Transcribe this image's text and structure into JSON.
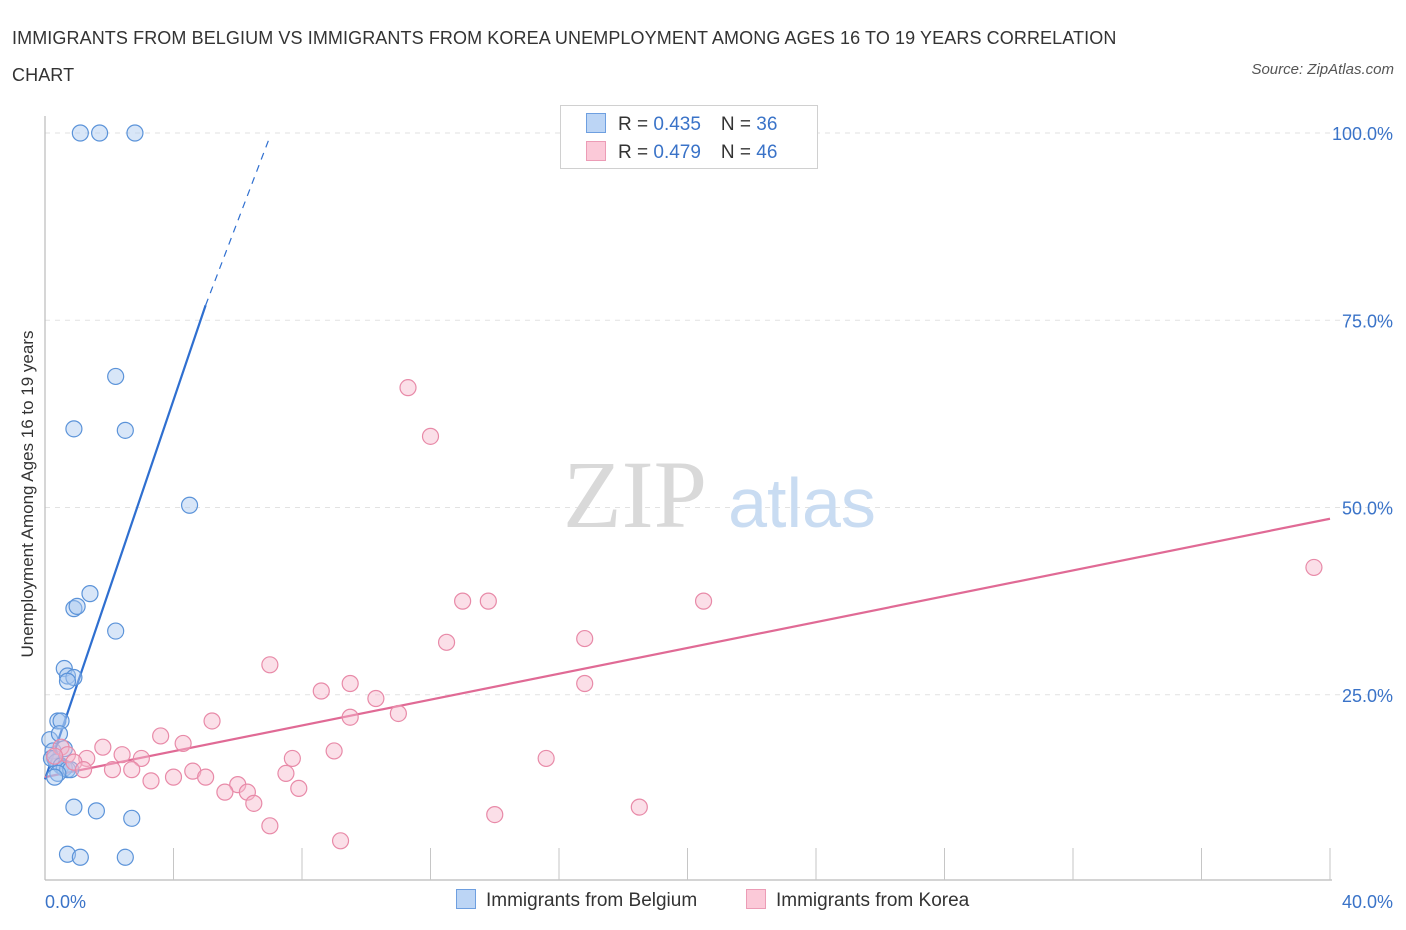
{
  "header": {
    "title": "IMMIGRANTS FROM BELGIUM VS IMMIGRANTS FROM KOREA UNEMPLOYMENT AMONG AGES 16 TO 19 YEARS CORRELATION CHART",
    "source": "Source: ZipAtlas.com"
  },
  "legend": {
    "belgium": {
      "r_label": "R = ",
      "r_value": "0.435",
      "n_label": "N = ",
      "n_value": "36"
    },
    "korea": {
      "r_label": "R = ",
      "r_value": "0.479",
      "n_label": "N = ",
      "n_value": "46"
    }
  },
  "bottom_legend": {
    "belgium": "Immigrants from Belgium",
    "korea": "Immigrants from Korea"
  },
  "watermark": {
    "part1": "ZIP",
    "part2": "atlas"
  },
  "colors": {
    "belgium_fill": "#a8c8f0",
    "belgium_stroke": "#5b93d9",
    "belgium_line": "#2f6fd0",
    "korea_fill": "#f6b8cb",
    "korea_stroke": "#e88aa8",
    "korea_line": "#e06a95",
    "tick_text": "#3a73c8"
  },
  "chart_data": {
    "type": "scatter",
    "title": "IMMIGRANTS FROM BELGIUM VS IMMIGRANTS FROM KOREA UNEMPLOYMENT AMONG AGES 16 TO 19 YEARS CORRELATION CHART",
    "xlabel": "",
    "ylabel": "Unemployment Among Ages 16 to 19 years",
    "xlim": [
      0,
      40
    ],
    "ylim": [
      0,
      100
    ],
    "x_tick_labels": [
      "0.0%",
      "40.0%"
    ],
    "y_ticks": [
      25,
      50,
      75,
      100
    ],
    "y_tick_labels": [
      "25.0%",
      "50.0%",
      "75.0%",
      "100.0%"
    ],
    "series": [
      {
        "name": "Immigrants from Belgium",
        "points": [
          [
            1.1,
            100
          ],
          [
            1.7,
            100
          ],
          [
            2.8,
            100
          ],
          [
            2.2,
            67.5
          ],
          [
            0.9,
            60.5
          ],
          [
            2.5,
            60.3
          ],
          [
            4.5,
            50.3
          ],
          [
            1.4,
            38.5
          ],
          [
            0.9,
            36.5
          ],
          [
            1.0,
            36.8
          ],
          [
            2.2,
            33.5
          ],
          [
            0.6,
            28.5
          ],
          [
            0.7,
            27.5
          ],
          [
            0.9,
            27.3
          ],
          [
            0.7,
            26.8
          ],
          [
            0.4,
            21.5
          ],
          [
            0.5,
            21.5
          ],
          [
            0.15,
            19.0
          ],
          [
            0.45,
            19.8
          ],
          [
            0.25,
            17.5
          ],
          [
            0.3,
            16.5
          ],
          [
            0.35,
            16.0
          ],
          [
            0.2,
            16.5
          ],
          [
            0.5,
            15.5
          ],
          [
            0.6,
            15.2
          ],
          [
            0.7,
            15.0
          ],
          [
            0.8,
            15.0
          ],
          [
            0.4,
            14.5
          ],
          [
            0.3,
            14.0
          ],
          [
            0.9,
            10.0
          ],
          [
            1.6,
            9.5
          ],
          [
            2.7,
            8.5
          ],
          [
            0.7,
            3.7
          ],
          [
            1.1,
            3.3
          ],
          [
            2.5,
            3.3
          ],
          [
            0.6,
            17.8
          ]
        ]
      },
      {
        "name": "Immigrants from Korea",
        "points": [
          [
            11.3,
            66.0
          ],
          [
            12.0,
            59.5
          ],
          [
            13.0,
            37.5
          ],
          [
            13.8,
            37.5
          ],
          [
            20.5,
            37.5
          ],
          [
            39.5,
            42.0
          ],
          [
            12.5,
            32.0
          ],
          [
            16.8,
            32.5
          ],
          [
            7.0,
            29.0
          ],
          [
            8.6,
            25.5
          ],
          [
            9.5,
            26.5
          ],
          [
            10.3,
            24.5
          ],
          [
            16.8,
            26.5
          ],
          [
            11.0,
            22.5
          ],
          [
            5.2,
            21.5
          ],
          [
            9.5,
            22.0
          ],
          [
            3.6,
            19.5
          ],
          [
            4.3,
            18.5
          ],
          [
            9.0,
            17.5
          ],
          [
            0.5,
            18.0
          ],
          [
            0.7,
            17.0
          ],
          [
            1.3,
            16.5
          ],
          [
            1.8,
            18.0
          ],
          [
            2.4,
            17.0
          ],
          [
            3.0,
            16.5
          ],
          [
            7.7,
            16.5
          ],
          [
            15.6,
            16.5
          ],
          [
            0.9,
            16.0
          ],
          [
            1.2,
            15.0
          ],
          [
            2.1,
            15.0
          ],
          [
            2.7,
            15.0
          ],
          [
            4.6,
            14.8
          ],
          [
            7.5,
            14.5
          ],
          [
            4.0,
            14.0
          ],
          [
            5.0,
            14.0
          ],
          [
            3.3,
            13.5
          ],
          [
            6.0,
            13.0
          ],
          [
            7.9,
            12.5
          ],
          [
            5.6,
            12.0
          ],
          [
            6.3,
            12.0
          ],
          [
            6.5,
            10.5
          ],
          [
            7.0,
            7.5
          ],
          [
            14.0,
            9.0
          ],
          [
            18.5,
            10.0
          ],
          [
            9.2,
            5.5
          ],
          [
            0.3,
            16.8
          ]
        ]
      }
    ],
    "trend_lines": [
      {
        "name": "Immigrants from Belgium",
        "x0": 0,
        "y0": 13.7,
        "x1": 5.0,
        "y1": 77.0,
        "dashed_to_x": 7.0,
        "dashed_to_y": 99.5
      },
      {
        "name": "Immigrants from Korea",
        "x0": 0,
        "y0": 14.0,
        "x1": 40.0,
        "y1": 48.5
      }
    ]
  }
}
